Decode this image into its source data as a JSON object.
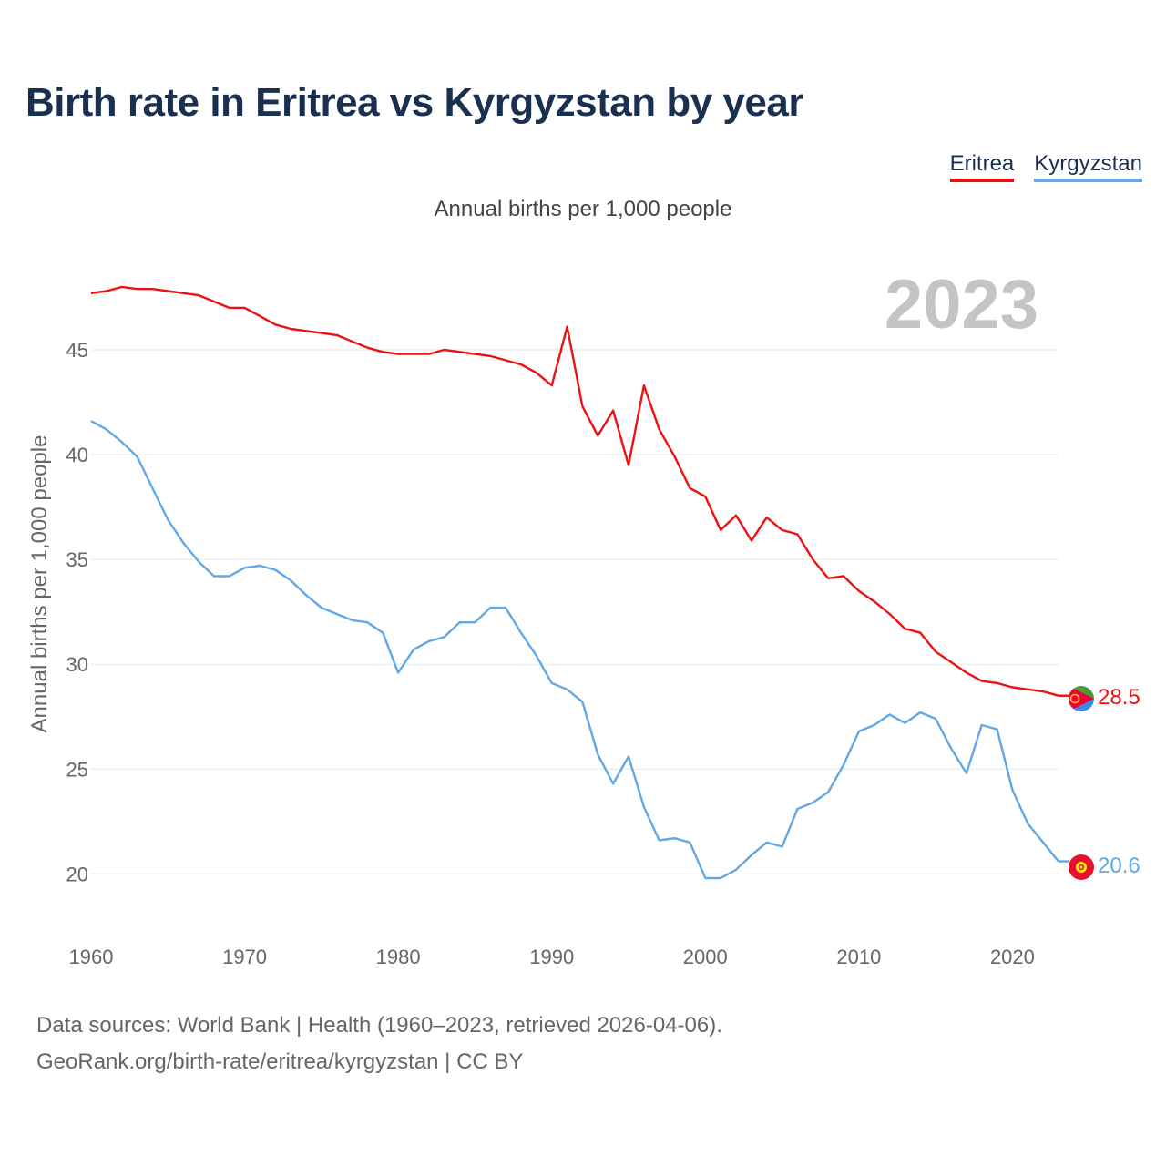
{
  "header": {
    "title": "Birth rate in Eritrea vs Kyrgyzstan by year",
    "subtitle": "Annual births per 1,000 people"
  },
  "legend": [
    {
      "label": "Eritrea",
      "color": "#ee1111"
    },
    {
      "label": "Kyrgyzstan",
      "color": "#62a8e5"
    }
  ],
  "footer": {
    "line1": "Data sources: World Bank | Health (1960–2023, retrieved 2026-04-06).",
    "line2": "GeoRank.org/birth-rate/eritrea/kyrgyzstan | CC BY"
  },
  "chart_data": {
    "type": "line",
    "title": "Birth rate in Eritrea vs Kyrgyzstan by year",
    "ylabel": "Annual births per 1,000 people",
    "xlabel": "",
    "year_label": "2023",
    "xlim": [
      1960,
      2023
    ],
    "ylim": [
      17.8,
      49.3
    ],
    "x_ticks": [
      "1960",
      "1970",
      "1980",
      "1990",
      "2000",
      "2010",
      "2020"
    ],
    "y_ticks": [
      "20",
      "25",
      "30",
      "35",
      "40",
      "45"
    ],
    "grid": true,
    "x": [
      1960,
      1961,
      1962,
      1963,
      1964,
      1965,
      1966,
      1967,
      1968,
      1969,
      1970,
      1971,
      1972,
      1973,
      1974,
      1975,
      1976,
      1977,
      1978,
      1979,
      1980,
      1981,
      1982,
      1983,
      1984,
      1985,
      1986,
      1987,
      1988,
      1989,
      1990,
      1991,
      1992,
      1993,
      1994,
      1995,
      1996,
      1997,
      1998,
      1999,
      2000,
      2001,
      2002,
      2003,
      2004,
      2005,
      2006,
      2007,
      2008,
      2009,
      2010,
      2011,
      2012,
      2013,
      2014,
      2015,
      2016,
      2017,
      2018,
      2019,
      2020,
      2021,
      2022,
      2023
    ],
    "series": [
      {
        "name": "Eritrea",
        "color": "#ee1111",
        "end_label": "28.5",
        "values": [
          47.7,
          47.8,
          48.0,
          47.9,
          47.9,
          47.8,
          47.7,
          47.6,
          47.3,
          47.0,
          47.0,
          46.6,
          46.2,
          46.0,
          45.9,
          45.8,
          45.7,
          45.4,
          45.1,
          44.9,
          44.8,
          44.8,
          44.8,
          45.0,
          44.9,
          44.8,
          44.7,
          44.5,
          44.3,
          43.9,
          43.3,
          46.1,
          42.3,
          40.9,
          42.1,
          39.5,
          43.3,
          41.2,
          39.9,
          38.4,
          38.0,
          36.4,
          37.1,
          35.9,
          37.0,
          36.4,
          36.2,
          35.0,
          34.1,
          34.2,
          33.5,
          33.0,
          32.4,
          31.7,
          31.5,
          30.6,
          30.1,
          29.6,
          29.2,
          29.1,
          28.9,
          28.8,
          28.7,
          28.5
        ]
      },
      {
        "name": "Kyrgyzstan",
        "color": "#62a8e5",
        "end_label": "20.6",
        "values": [
          41.6,
          41.2,
          40.6,
          39.9,
          38.4,
          36.9,
          35.8,
          34.9,
          34.2,
          34.2,
          34.6,
          34.7,
          34.5,
          34.0,
          33.3,
          32.7,
          32.4,
          32.1,
          32.0,
          31.5,
          29.6,
          30.7,
          31.1,
          31.3,
          32.0,
          32.0,
          32.7,
          32.7,
          31.5,
          30.4,
          29.1,
          28.8,
          28.2,
          25.7,
          24.3,
          25.6,
          23.2,
          21.6,
          21.7,
          21.5,
          19.8,
          19.8,
          20.2,
          20.9,
          21.5,
          21.3,
          23.1,
          23.4,
          23.9,
          25.2,
          26.8,
          27.1,
          27.6,
          27.2,
          27.7,
          27.4,
          26.0,
          24.8,
          27.1,
          26.9,
          24.0,
          22.4,
          21.5,
          20.6
        ]
      }
    ]
  }
}
